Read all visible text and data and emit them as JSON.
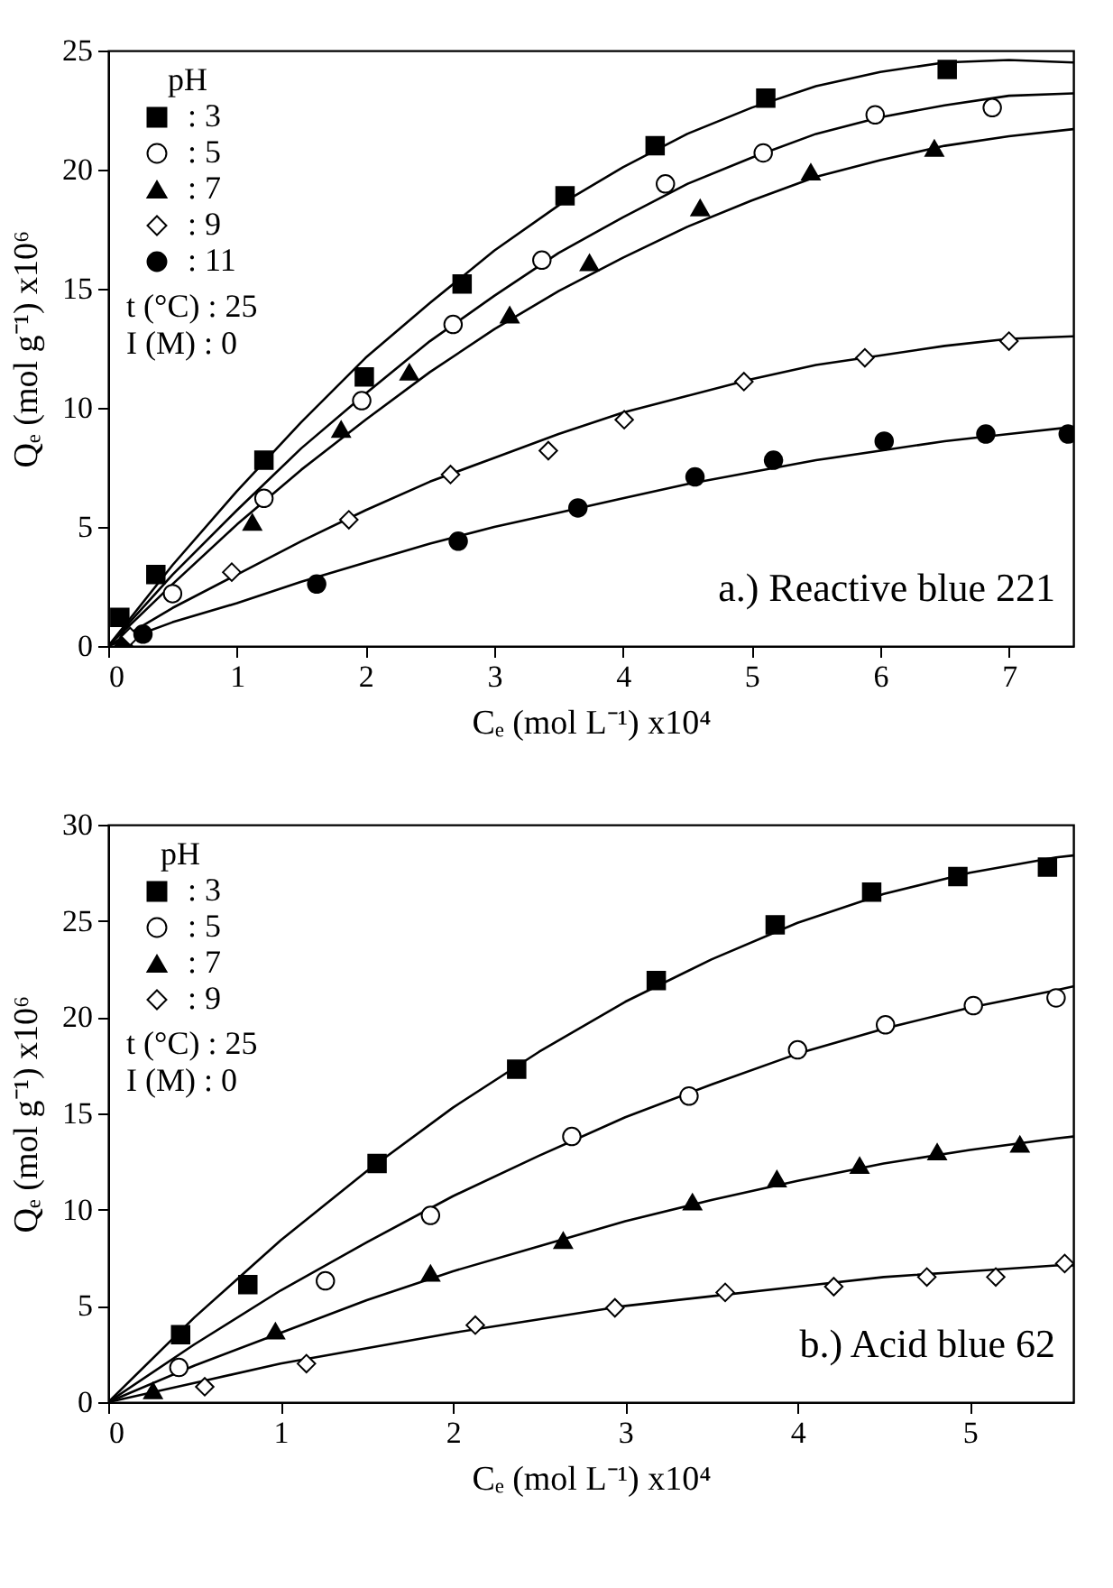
{
  "chart_data": [
    {
      "type": "scatter",
      "title": "a.) Reactive blue 221",
      "xlabel": "Cₑ (mol L⁻¹) x10⁴",
      "ylabel": "Qₑ (mol g⁻¹) x10⁶",
      "legend_title": "pH",
      "legend": "top left",
      "grid": false,
      "xlim": [
        0,
        7.5
      ],
      "xticks": [
        0,
        1,
        2,
        3,
        4,
        5,
        6,
        7
      ],
      "ylim": [
        0,
        25
      ],
      "yticks": [
        0,
        5,
        10,
        15,
        20,
        25
      ],
      "annotations": [
        "t (°C)   : 25",
        "I (M)     : 0"
      ],
      "series": [
        {
          "type": "line",
          "color": "#000000",
          "x": [
            0,
            0.5,
            1,
            1.5,
            2,
            2.5,
            3,
            3.5,
            4,
            4.5,
            5,
            5.5,
            6,
            6.5,
            7,
            7.5
          ],
          "values": [
            0,
            3.4,
            6.5,
            9.4,
            12.1,
            14.4,
            16.6,
            18.5,
            20.1,
            21.5,
            22.6,
            23.5,
            24.1,
            24.5,
            24.6,
            24.5
          ]
        },
        {
          "type": "line",
          "color": "#000000",
          "x": [
            0,
            0.5,
            1,
            1.5,
            2,
            2.5,
            3,
            3.5,
            4,
            4.5,
            5,
            5.5,
            6,
            6.5,
            7,
            7.5
          ],
          "values": [
            0,
            3.0,
            5.7,
            8.3,
            10.6,
            12.8,
            14.7,
            16.5,
            18.0,
            19.4,
            20.5,
            21.5,
            22.2,
            22.7,
            23.1,
            23.2
          ]
        },
        {
          "type": "line",
          "color": "#000000",
          "x": [
            0,
            0.5,
            1,
            1.5,
            2,
            2.5,
            3,
            3.5,
            4,
            4.5,
            5,
            5.5,
            6,
            6.5,
            7,
            7.5
          ],
          "values": [
            0,
            2.6,
            5.1,
            7.4,
            9.5,
            11.5,
            13.3,
            14.9,
            16.3,
            17.6,
            18.7,
            19.7,
            20.4,
            21.0,
            21.4,
            21.7
          ]
        },
        {
          "type": "line",
          "color": "#000000",
          "x": [
            0,
            0.5,
            1,
            1.5,
            2,
            2.5,
            3,
            3.5,
            4,
            4.5,
            5,
            5.5,
            6,
            6.5,
            7,
            7.5
          ],
          "values": [
            0,
            1.6,
            3.0,
            4.4,
            5.7,
            6.9,
            7.9,
            8.9,
            9.8,
            10.5,
            11.2,
            11.8,
            12.2,
            12.6,
            12.9,
            13.0
          ]
        },
        {
          "type": "line",
          "color": "#000000",
          "x": [
            0,
            0.5,
            1,
            1.5,
            2,
            2.5,
            3,
            3.5,
            4,
            4.5,
            5,
            5.5,
            6,
            6.5,
            7,
            7.5
          ],
          "values": [
            0,
            1.0,
            1.8,
            2.7,
            3.5,
            4.3,
            5.0,
            5.6,
            6.2,
            6.8,
            7.3,
            7.8,
            8.2,
            8.6,
            8.9,
            9.2
          ]
        },
        {
          "name": ": 3",
          "color": "#000000",
          "marker": "square",
          "x": [
            0.09,
            0.37,
            1.21,
            1.99,
            2.75,
            3.55,
            4.25,
            5.11,
            6.52
          ],
          "values": [
            1.2,
            3.0,
            7.8,
            11.3,
            15.2,
            18.9,
            21.0,
            23.0,
            24.2
          ]
        },
        {
          "name": ": 5",
          "color": "#ffffff",
          "marker": "circle",
          "x": [
            0.5,
            1.21,
            1.97,
            2.68,
            3.37,
            4.33,
            5.09,
            5.96,
            6.87
          ],
          "values": [
            2.2,
            6.2,
            10.3,
            13.5,
            16.2,
            19.4,
            20.7,
            22.3,
            22.6
          ]
        },
        {
          "name": ": 7",
          "color": "#000000",
          "marker": "triangle",
          "x": [
            0.12,
            1.12,
            1.81,
            2.34,
            3.12,
            3.74,
            4.6,
            5.46,
            6.42
          ],
          "values": [
            0.3,
            5.2,
            9.1,
            11.5,
            13.9,
            16.1,
            18.4,
            19.9,
            20.9
          ]
        },
        {
          "name": ": 9",
          "color": "#ffffff",
          "marker": "diamond",
          "x": [
            0.17,
            0.96,
            1.87,
            2.66,
            3.42,
            4.01,
            4.94,
            5.88,
            7.0
          ],
          "values": [
            0.4,
            3.1,
            5.3,
            7.2,
            8.2,
            9.5,
            11.1,
            12.1,
            12.8
          ]
        },
        {
          "name": ": 11",
          "color": "#000000",
          "marker": "circle",
          "x": [
            0.27,
            1.62,
            2.72,
            3.65,
            4.56,
            5.17,
            6.03,
            6.82,
            7.46
          ],
          "values": [
            0.5,
            2.6,
            4.4,
            5.8,
            7.1,
            7.8,
            8.6,
            8.9,
            8.9
          ]
        }
      ]
    },
    {
      "type": "scatter",
      "title": "b.) Acid blue 62",
      "xlabel": "Cₑ (mol L⁻¹) x10⁴",
      "ylabel": "Qₑ (mol g⁻¹) x10⁶",
      "legend_title": "pH",
      "legend": "top left",
      "grid": false,
      "xlim": [
        0,
        5.6
      ],
      "xticks": [
        0,
        1,
        2,
        3,
        4,
        5
      ],
      "ylim": [
        0,
        30
      ],
      "yticks": [
        0,
        5,
        10,
        15,
        20,
        25,
        30
      ],
      "annotations": [
        "t (°C)   : 25",
        "I (M)     : 0"
      ],
      "series": [
        {
          "type": "line",
          "color": "#000000",
          "x": [
            0,
            0.5,
            1,
            1.5,
            2,
            2.5,
            3,
            3.5,
            4,
            4.5,
            5,
            5.5,
            5.6
          ],
          "values": [
            0,
            4.4,
            8.4,
            12.0,
            15.3,
            18.2,
            20.8,
            23.0,
            24.9,
            26.4,
            27.5,
            28.3,
            28.4
          ]
        },
        {
          "type": "line",
          "color": "#000000",
          "x": [
            0,
            0.5,
            1,
            1.5,
            2,
            2.5,
            3,
            3.5,
            4,
            4.5,
            5,
            5.5,
            5.6
          ],
          "values": [
            0,
            3.0,
            5.8,
            8.3,
            10.7,
            12.8,
            14.8,
            16.5,
            18.1,
            19.4,
            20.5,
            21.4,
            21.6
          ]
        },
        {
          "type": "line",
          "color": "#000000",
          "x": [
            0,
            0.5,
            1,
            1.5,
            2,
            2.5,
            3,
            3.5,
            4,
            4.5,
            5,
            5.5,
            5.6
          ],
          "values": [
            0,
            1.9,
            3.6,
            5.3,
            6.8,
            8.1,
            9.4,
            10.5,
            11.5,
            12.4,
            13.1,
            13.7,
            13.8
          ]
        },
        {
          "type": "line",
          "color": "#000000",
          "x": [
            0,
            0.5,
            1,
            1.5,
            2,
            2.5,
            3,
            3.5,
            4,
            4.5,
            5,
            5.5,
            5.6
          ],
          "values": [
            0,
            1.0,
            2.0,
            2.8,
            3.6,
            4.3,
            5.0,
            5.5,
            6.0,
            6.5,
            6.8,
            7.1,
            7.1
          ]
        },
        {
          "name": ": 3",
          "color": "#000000",
          "marker": "square",
          "x": [
            0.42,
            0.81,
            1.56,
            2.37,
            3.18,
            3.87,
            4.43,
            4.93,
            5.45
          ],
          "values": [
            3.5,
            6.1,
            12.4,
            17.3,
            21.9,
            24.8,
            26.5,
            27.3,
            27.8
          ]
        },
        {
          "name": ": 5",
          "color": "#ffffff",
          "marker": "circle",
          "x": [
            0.41,
            1.26,
            1.87,
            2.69,
            3.37,
            4.0,
            4.51,
            5.02,
            5.5
          ],
          "values": [
            1.8,
            6.3,
            9.7,
            13.8,
            15.9,
            18.3,
            19.6,
            20.6,
            21.0
          ]
        },
        {
          "name": ": 7",
          "color": "#000000",
          "marker": "triangle",
          "x": [
            0.26,
            0.97,
            1.87,
            2.64,
            3.39,
            3.88,
            4.36,
            4.81,
            5.29
          ],
          "values": [
            0.6,
            3.7,
            6.7,
            8.4,
            10.4,
            11.6,
            12.3,
            13.0,
            13.4
          ]
        },
        {
          "name": ": 9",
          "color": "#ffffff",
          "marker": "diamond",
          "x": [
            0.56,
            1.15,
            2.13,
            2.94,
            3.58,
            4.21,
            4.75,
            5.15,
            5.55
          ],
          "values": [
            0.8,
            2.0,
            4.0,
            4.9,
            5.7,
            6.0,
            6.5,
            6.5,
            7.2
          ]
        }
      ]
    }
  ]
}
